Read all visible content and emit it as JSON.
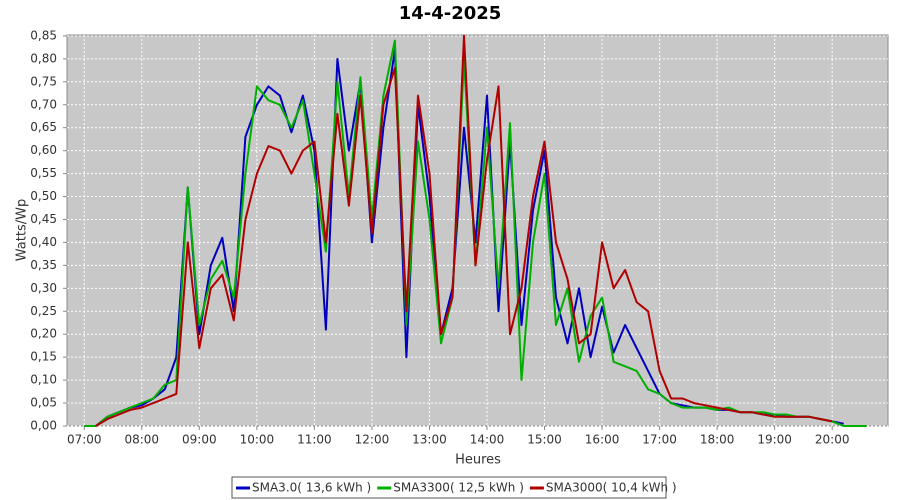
{
  "chart_data": {
    "type": "line",
    "title": "14-4-2025",
    "x_label": "Heures",
    "y_label": "Watts/Wp",
    "x": [
      7.0,
      7.2,
      7.4,
      7.6,
      7.8,
      8.0,
      8.2,
      8.4,
      8.6,
      8.8,
      9.0,
      9.2,
      9.4,
      9.6,
      9.8,
      10.0,
      10.2,
      10.4,
      10.6,
      10.8,
      11.0,
      11.2,
      11.4,
      11.6,
      11.8,
      12.0,
      12.2,
      12.4,
      12.6,
      12.8,
      13.0,
      13.2,
      13.4,
      13.6,
      13.8,
      14.0,
      14.2,
      14.4,
      14.6,
      14.8,
      15.0,
      15.2,
      15.4,
      15.6,
      15.8,
      16.0,
      16.2,
      16.4,
      16.6,
      16.8,
      17.0,
      17.2,
      17.4,
      17.6,
      17.8,
      18.0,
      18.2,
      18.4,
      18.6,
      18.8,
      19.0,
      19.2,
      19.4,
      19.6,
      19.8,
      20.0,
      20.2,
      20.4,
      20.6,
      20.8
    ],
    "series": [
      {
        "name": "SMA3.0( 13,6 kWh )",
        "color": "#0000c0",
        "values": [
          0,
          0,
          0.02,
          0.03,
          0.04,
          0.045,
          0.06,
          0.08,
          0.15,
          0.52,
          0.2,
          0.35,
          0.41,
          0.25,
          0.63,
          0.7,
          0.74,
          0.72,
          0.64,
          0.72,
          0.6,
          0.21,
          0.8,
          0.6,
          0.75,
          0.4,
          0.65,
          0.82,
          0.15,
          0.7,
          0.5,
          0.2,
          0.3,
          0.65,
          0.4,
          0.72,
          0.25,
          0.62,
          0.22,
          0.47,
          0.6,
          0.28,
          0.18,
          0.3,
          0.15,
          0.26,
          0.16,
          0.22,
          0.17,
          0.12,
          0.07,
          0.05,
          0.045,
          0.04,
          0.04,
          0.035,
          0.035,
          0.03,
          0.03,
          0.025,
          0.025,
          0.02,
          0.02,
          0.02,
          0.015,
          0.01,
          0.005,
          null,
          null,
          null
        ]
      },
      {
        "name": "SMA3300( 12,5 kWh )",
        "color": "#00b000",
        "values": [
          0,
          0,
          0.02,
          0.03,
          0.04,
          0.05,
          0.06,
          0.09,
          0.1,
          0.52,
          0.22,
          0.32,
          0.36,
          0.28,
          0.55,
          0.74,
          0.71,
          0.7,
          0.65,
          0.71,
          0.55,
          0.38,
          0.75,
          0.5,
          0.76,
          0.45,
          0.72,
          0.84,
          0.22,
          0.62,
          0.45,
          0.18,
          0.28,
          0.8,
          0.35,
          0.65,
          0.3,
          0.66,
          0.1,
          0.4,
          0.55,
          0.22,
          0.3,
          0.14,
          0.24,
          0.28,
          0.14,
          0.13,
          0.12,
          0.08,
          0.07,
          0.05,
          0.04,
          0.04,
          0.04,
          0.035,
          0.04,
          0.03,
          0.03,
          0.03,
          0.025,
          0.025,
          0.02,
          0.02,
          0.015,
          0.01,
          0,
          0,
          0,
          null
        ]
      },
      {
        "name": "SMA3000( 10,4 kWh )",
        "color": "#b00000",
        "values": [
          null,
          0,
          0.015,
          0.025,
          0.035,
          0.04,
          0.05,
          0.06,
          0.07,
          0.4,
          0.17,
          0.3,
          0.33,
          0.23,
          0.45,
          0.55,
          0.61,
          0.6,
          0.55,
          0.6,
          0.62,
          0.4,
          0.68,
          0.48,
          0.72,
          0.42,
          0.7,
          0.78,
          0.25,
          0.72,
          0.55,
          0.2,
          0.28,
          0.85,
          0.35,
          0.58,
          0.74,
          0.2,
          0.3,
          0.5,
          0.62,
          0.4,
          0.32,
          0.18,
          0.2,
          0.4,
          0.3,
          0.34,
          0.27,
          0.25,
          0.12,
          0.06,
          0.06,
          0.05,
          0.045,
          0.04,
          0.035,
          0.03,
          0.03,
          0.025,
          0.02,
          0.02,
          0.02,
          0.02,
          0.015,
          0.01,
          null,
          null,
          null,
          null
        ]
      }
    ],
    "xlim": [
      6.7,
      20.97
    ],
    "ylim": [
      0,
      0.852
    ],
    "xticks": [
      {
        "value": 7,
        "label": "07:00"
      },
      {
        "value": 8,
        "label": "08:00"
      },
      {
        "value": 9,
        "label": "09:00"
      },
      {
        "value": 10,
        "label": "10:00"
      },
      {
        "value": 11,
        "label": "11:00"
      },
      {
        "value": 12,
        "label": "12:00"
      },
      {
        "value": 13,
        "label": "13:00"
      },
      {
        "value": 14,
        "label": "14:00"
      },
      {
        "value": 15,
        "label": "15:00"
      },
      {
        "value": 16,
        "label": "16:00"
      },
      {
        "value": 17,
        "label": "17:00"
      },
      {
        "value": 18,
        "label": "18:00"
      },
      {
        "value": 19,
        "label": "19:00"
      },
      {
        "value": 20,
        "label": "20:00"
      }
    ],
    "yticks": [
      {
        "value": 0,
        "label": "0,00"
      },
      {
        "value": 0.05,
        "label": "0,05"
      },
      {
        "value": 0.1,
        "label": "0,10"
      },
      {
        "value": 0.15,
        "label": "0,15"
      },
      {
        "value": 0.2,
        "label": "0,20"
      },
      {
        "value": 0.25,
        "label": "0,25"
      },
      {
        "value": 0.3,
        "label": "0,30"
      },
      {
        "value": 0.35,
        "label": "0,35"
      },
      {
        "value": 0.4,
        "label": "0,40"
      },
      {
        "value": 0.45,
        "label": "0,45"
      },
      {
        "value": 0.5,
        "label": "0,50"
      },
      {
        "value": 0.55,
        "label": "0,55"
      },
      {
        "value": 0.6,
        "label": "0,60"
      },
      {
        "value": 0.65,
        "label": "0,65"
      },
      {
        "value": 0.7,
        "label": "0,70"
      },
      {
        "value": 0.75,
        "label": "0,75"
      },
      {
        "value": 0.8,
        "label": "0,80"
      },
      {
        "value": 0.85,
        "label": "0,85"
      }
    ],
    "grid": true,
    "legend": "bottom"
  }
}
